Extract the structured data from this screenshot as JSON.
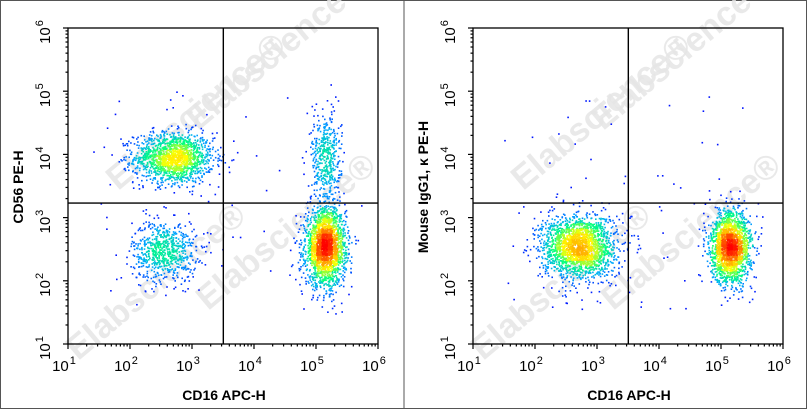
{
  "watermark": {
    "text": "Elabscience",
    "symbol": "®"
  },
  "colors": {
    "density_scale": [
      "#0000ff",
      "#00a8ff",
      "#00ff80",
      "#ffff00",
      "#ff8000",
      "#ff0000"
    ],
    "gate": "#000000"
  },
  "chart_data": [
    {
      "type": "scatter",
      "plot_style": "flow-cytometry-density-dot-plot",
      "xlabel": "CD16 APC-H",
      "ylabel": "CD56 PE-H",
      "x_scale": "log",
      "y_scale": "log",
      "xlim": [
        10,
        1000000
      ],
      "ylim": [
        10,
        1000000
      ],
      "x_ticks": [
        {
          "base": "10",
          "exp": "1"
        },
        {
          "base": "10",
          "exp": "2"
        },
        {
          "base": "10",
          "exp": "3"
        },
        {
          "base": "10",
          "exp": "4"
        },
        {
          "base": "10",
          "exp": "5"
        },
        {
          "base": "10",
          "exp": "6"
        }
      ],
      "y_ticks": [
        {
          "base": "10",
          "exp": "1"
        },
        {
          "base": "10",
          "exp": "2"
        },
        {
          "base": "10",
          "exp": "3"
        },
        {
          "base": "10",
          "exp": "4"
        },
        {
          "base": "10",
          "exp": "5"
        },
        {
          "base": "10",
          "exp": "6"
        }
      ],
      "gate": {
        "x": 3200,
        "y": 1700
      },
      "populations": [
        {
          "center": [
            500,
            9000
          ],
          "spread_log10": [
            0.32,
            0.2
          ],
          "events": 1500
        },
        {
          "center": [
            350,
            300
          ],
          "spread_log10": [
            0.26,
            0.24
          ],
          "events": 700
        },
        {
          "center": [
            140000,
            350
          ],
          "spread_log10": [
            0.16,
            0.3
          ],
          "events": 2200
        },
        {
          "center": [
            140000,
            9000
          ],
          "spread_log10": [
            0.12,
            0.35
          ],
          "events": 450
        }
      ],
      "grid": false,
      "legend": "none"
    },
    {
      "type": "scatter",
      "plot_style": "flow-cytometry-density-dot-plot",
      "xlabel": "CD16 APC-H",
      "ylabel": "Mouse IgG1, κ PE-H",
      "x_scale": "log",
      "y_scale": "log",
      "xlim": [
        10,
        1000000
      ],
      "ylim": [
        10,
        1000000
      ],
      "x_ticks": [
        {
          "base": "10",
          "exp": "1"
        },
        {
          "base": "10",
          "exp": "2"
        },
        {
          "base": "10",
          "exp": "3"
        },
        {
          "base": "10",
          "exp": "4"
        },
        {
          "base": "10",
          "exp": "5"
        },
        {
          "base": "10",
          "exp": "6"
        }
      ],
      "y_ticks": [
        {
          "base": "10",
          "exp": "1"
        },
        {
          "base": "10",
          "exp": "2"
        },
        {
          "base": "10",
          "exp": "3"
        },
        {
          "base": "10",
          "exp": "4"
        },
        {
          "base": "10",
          "exp": "5"
        },
        {
          "base": "10",
          "exp": "6"
        }
      ],
      "gate": {
        "x": 3200,
        "y": 1700
      },
      "populations": [
        {
          "center": [
            500,
            350
          ],
          "spread_log10": [
            0.3,
            0.25
          ],
          "events": 2000
        },
        {
          "center": [
            140000,
            350
          ],
          "spread_log10": [
            0.16,
            0.28
          ],
          "events": 1900
        }
      ],
      "grid": false,
      "legend": "none"
    }
  ]
}
